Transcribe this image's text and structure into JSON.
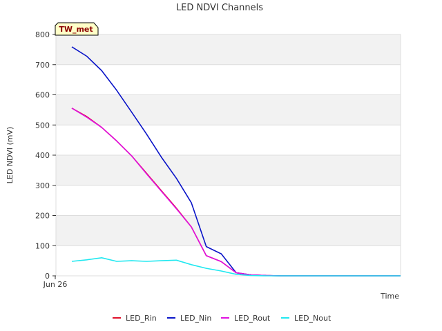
{
  "chart_data": {
    "type": "line",
    "title": "LED NDVI Channels",
    "xlabel": "Time",
    "ylabel": "LED NDVI (mV)",
    "ylim": [
      0,
      800
    ],
    "yticks": [
      0,
      100,
      200,
      300,
      400,
      500,
      600,
      700,
      800
    ],
    "xtick_label": "Jun 26",
    "site_tag": "TW_met",
    "grid": true,
    "legend_position": "bottom",
    "x": [
      0,
      1,
      2,
      3,
      4,
      5,
      6,
      7,
      8,
      9,
      10,
      11,
      12,
      13,
      14,
      15,
      16,
      17,
      18,
      19,
      20,
      21,
      22
    ],
    "series": [
      {
        "name": "LED_Rin",
        "color": "#e0102a",
        "values": [
          556,
          528,
          492,
          447,
          398,
          340,
          282,
          224,
          162,
          67,
          47,
          10,
          3,
          1,
          0,
          0,
          0,
          0,
          0,
          0,
          0,
          0,
          0
        ]
      },
      {
        "name": "LED_Nin",
        "color": "#0a14c8",
        "values": [
          759,
          728,
          680,
          615,
          543,
          470,
          393,
          323,
          242,
          97,
          73,
          10,
          3,
          1,
          0,
          0,
          0,
          0,
          0,
          0,
          0,
          0,
          0
        ]
      },
      {
        "name": "LED_Rout",
        "color": "#e010e0",
        "values": [
          556,
          526,
          492,
          447,
          398,
          338,
          280,
          222,
          162,
          67,
          47,
          10,
          3,
          1,
          0,
          0,
          0,
          0,
          0,
          0,
          0,
          0,
          0
        ]
      },
      {
        "name": "LED_Nout",
        "color": "#20e8f0",
        "values": [
          48,
          53,
          60,
          48,
          50,
          48,
          50,
          52,
          37,
          25,
          16,
          5,
          1,
          0,
          0,
          0,
          0,
          0,
          0,
          0,
          0,
          0,
          0
        ]
      }
    ]
  }
}
